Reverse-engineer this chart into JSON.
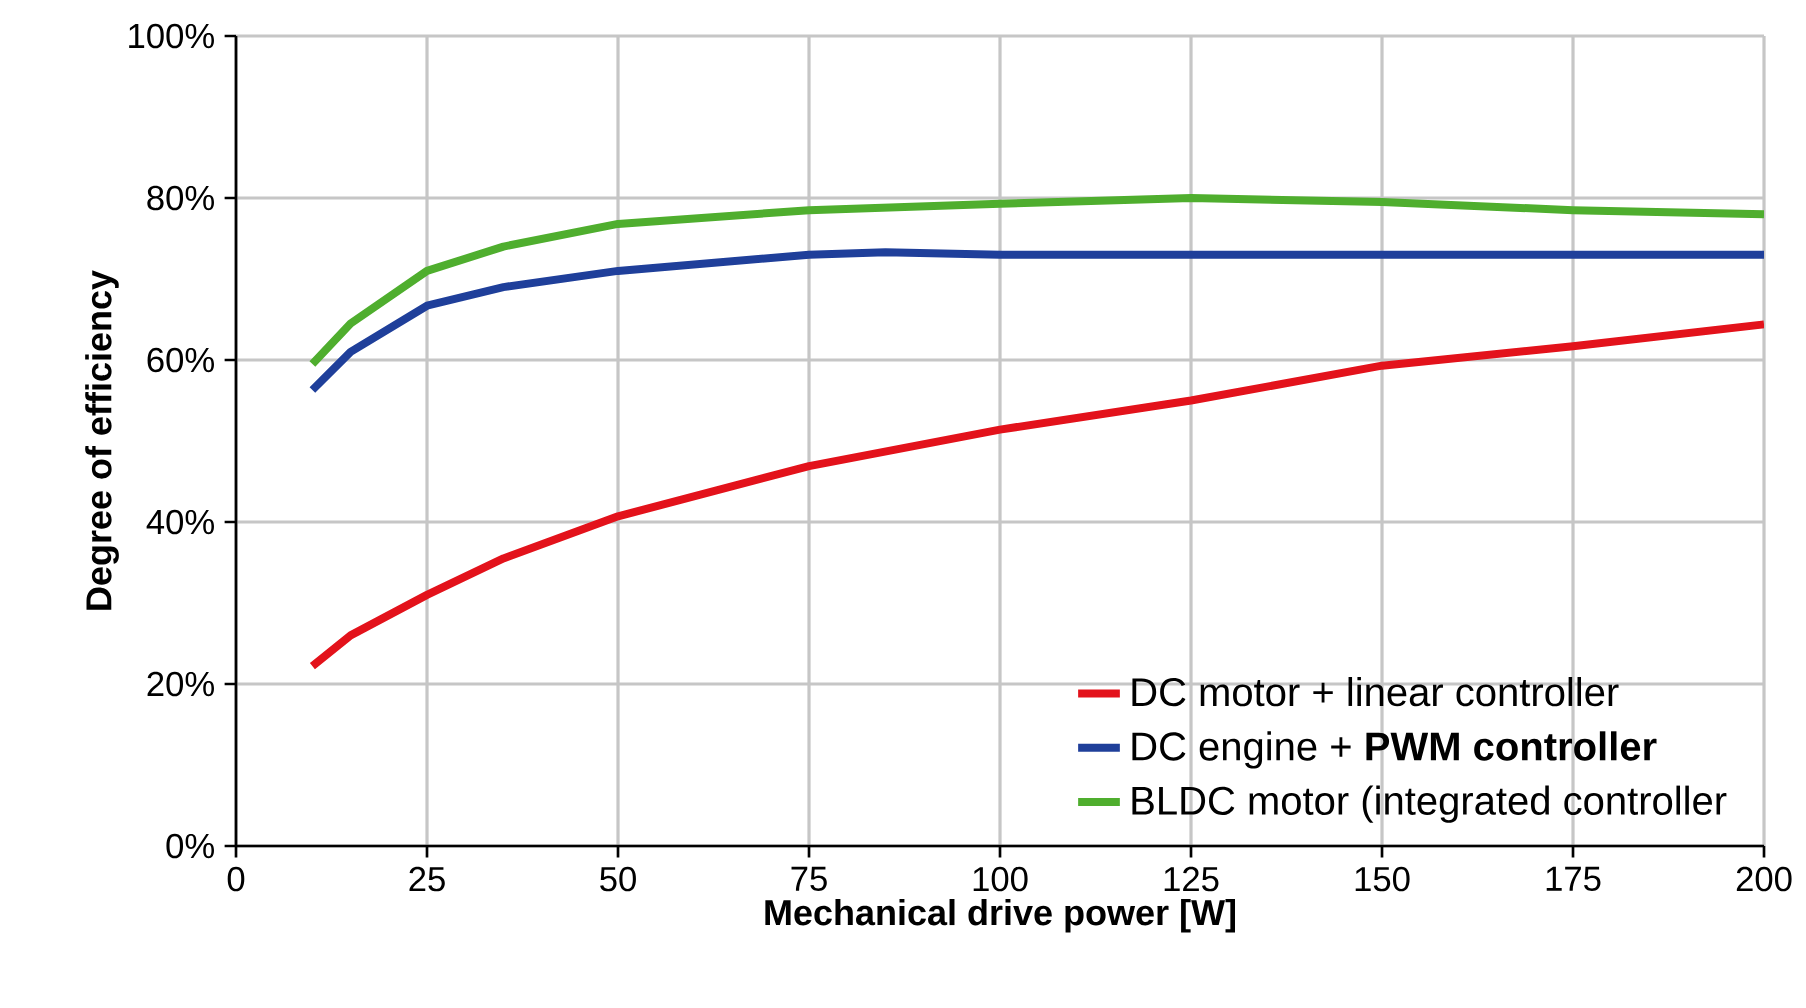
{
  "chart_data": {
    "type": "line",
    "xlabel": "Mechanical drive power [W]",
    "ylabel": "Degree of efficiency",
    "xlim": [
      0,
      200
    ],
    "xticks": [
      0,
      25,
      50,
      75,
      100,
      125,
      150,
      175,
      200
    ],
    "ylim": [
      0,
      100
    ],
    "yticks": [
      {
        "value": 0,
        "label": "0%"
      },
      {
        "value": 20,
        "label": "20%"
      },
      {
        "value": 40,
        "label": "40%"
      },
      {
        "value": 60,
        "label": "60%"
      },
      {
        "value": 80,
        "label": "80%"
      },
      {
        "value": 100,
        "label": "100%"
      }
    ],
    "grid": true,
    "legend": "bottom right",
    "marker": "none",
    "line_style": "solid",
    "series": [
      {
        "name": "DC motor + linear controller",
        "color": "#e3121b",
        "x": [
          10,
          15,
          25,
          35,
          50,
          75,
          100,
          125,
          150,
          175,
          200
        ],
        "values": [
          22.2,
          26,
          31,
          35.5,
          40.7,
          46.9,
          51.4,
          55,
          59.3,
          61.7,
          64.4
        ]
      },
      {
        "name": "DC engine + **PWM controller**",
        "color": "#1f3f9a",
        "x": [
          10,
          15,
          25,
          35,
          50,
          75,
          85,
          100,
          125,
          150,
          175,
          200
        ],
        "values": [
          56.3,
          61,
          66.7,
          69,
          71,
          73,
          73.3,
          73,
          73,
          73,
          73,
          73
        ]
      },
      {
        "name": "BLDC motor (integrated controller",
        "color": "#4fae2e",
        "x": [
          10,
          15,
          25,
          35,
          50,
          75,
          100,
          125,
          150,
          175,
          200
        ],
        "values": [
          59.5,
          64.5,
          71,
          74,
          76.8,
          78.5,
          79.3,
          80,
          79.5,
          78.5,
          78
        ]
      }
    ]
  }
}
